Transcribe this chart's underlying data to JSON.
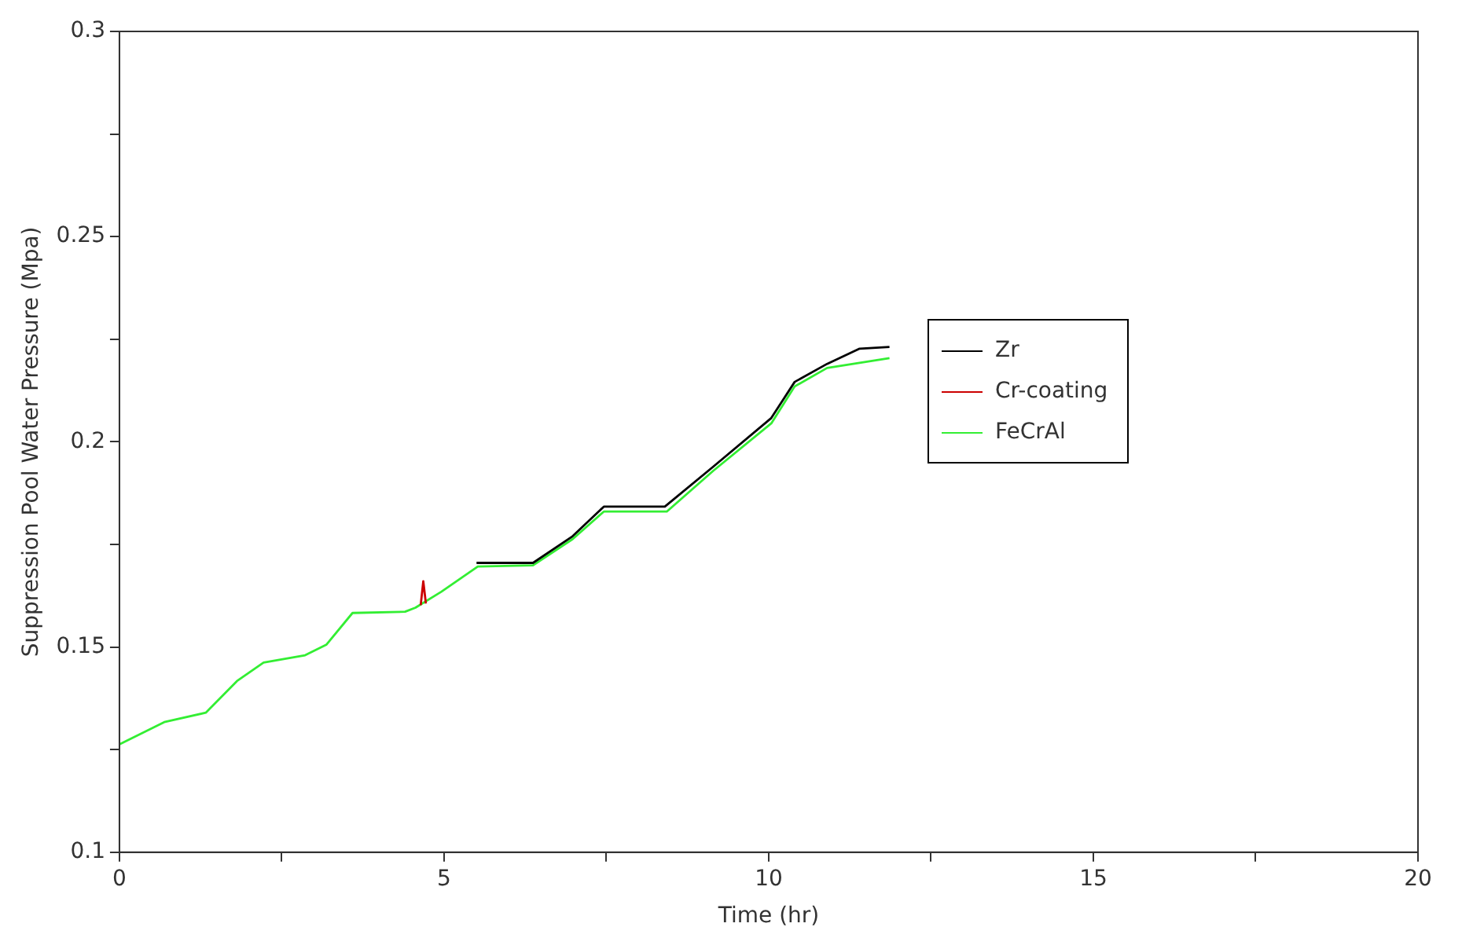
{
  "chart_data": {
    "type": "line",
    "xlabel": "Time (hr)",
    "ylabel": "Suppression Pool Water Pressure (Mpa)",
    "xlim": [
      0,
      20
    ],
    "ylim": [
      0.1,
      0.3
    ],
    "xticks": [
      0,
      {
        "value": 2.5,
        "label": null
      },
      5,
      {
        "value": 7.5,
        "label": null
      },
      10,
      {
        "value": 12.5,
        "label": null
      },
      15,
      {
        "value": 17.5,
        "label": null
      },
      20
    ],
    "yticks": [
      0.1,
      {
        "value": 0.125,
        "label": null
      },
      0.15,
      {
        "value": 0.175,
        "label": null
      },
      0.2,
      {
        "value": 0.225,
        "label": null
      },
      0.25,
      {
        "value": 0.275,
        "label": null
      },
      0.3
    ],
    "grid": false,
    "legend": "right",
    "marker": "none",
    "line_style": "solid",
    "series": [
      {
        "name": "Zr",
        "color": "#000000",
        "x": [
          5.5,
          6.37,
          6.98,
          7.46,
          8.4,
          9.15,
          10.04,
          10.4,
          10.9,
          11.4,
          11.86
        ],
        "values": [
          0.1705,
          0.1705,
          0.177,
          0.1842,
          0.1842,
          0.194,
          0.2058,
          0.2146,
          0.219,
          0.2227,
          0.2231
        ]
      },
      {
        "name": "Cr-coating",
        "color": "#cc0000",
        "x": [
          4.64,
          4.68,
          4.72
        ],
        "values": [
          0.1602,
          0.166,
          0.1606
        ]
      },
      {
        "name": "FeCrAl",
        "color": "#33ee33",
        "x": [
          0,
          0.69,
          1.33,
          1.81,
          2.22,
          2.86,
          3.19,
          3.59,
          4.4,
          4.56,
          4.96,
          5.52,
          6.37,
          6.98,
          7.46,
          8.43,
          9.15,
          10.04,
          10.4,
          10.9,
          11.86
        ],
        "values": [
          0.1263,
          0.1317,
          0.134,
          0.1417,
          0.1462,
          0.148,
          0.1506,
          0.1583,
          0.1586,
          0.1596,
          0.1635,
          0.1696,
          0.1699,
          0.1763,
          0.183,
          0.183,
          0.193,
          0.2045,
          0.2135,
          0.218,
          0.2204
        ]
      }
    ]
  }
}
